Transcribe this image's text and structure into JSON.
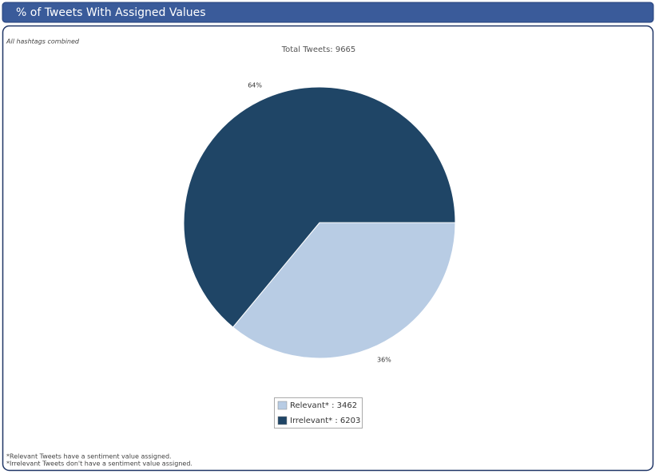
{
  "panel": {
    "title": "% of Tweets With Assigned Values",
    "subtitle": "All hashtags combined",
    "footnotes": [
      "*Relevant Tweets have a sentiment value assigned.",
      "*Irrelevant Tweets don't have a sentiment value assigned."
    ]
  },
  "chart_data": {
    "type": "pie",
    "title": "Total Tweets: 9665",
    "values": [
      36,
      64
    ],
    "value_labels": [
      "36%",
      "64%"
    ],
    "legend_labels": [
      "Relevant* : 3462",
      "Irrelevant* : 6203"
    ],
    "colors": [
      "#b8cce4",
      "#1f4566"
    ],
    "legend": "bottom"
  }
}
